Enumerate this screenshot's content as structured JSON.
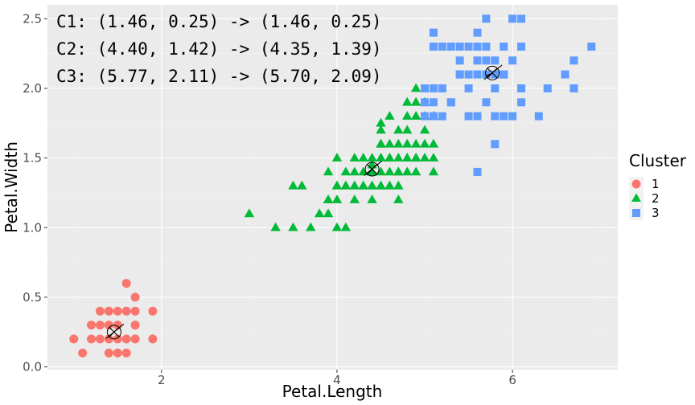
{
  "chart_data": {
    "type": "scatter",
    "title": "",
    "xlabel": "Petal.Length",
    "ylabel": "Petal.Width",
    "xlim": [
      0.7,
      7.2
    ],
    "ylim": [
      -0.02,
      2.6
    ],
    "x_ticks": [
      2,
      4,
      6
    ],
    "x_tick_labels": [
      "2",
      "4",
      "6"
    ],
    "y_ticks": [
      0.0,
      0.5,
      1.0,
      1.5,
      2.0,
      2.5
    ],
    "y_tick_labels": [
      "0.0",
      "0.5",
      "1.0",
      "1.5",
      "2.0",
      "2.5"
    ],
    "grid": true,
    "legend": {
      "title": "Cluster",
      "position": "right"
    },
    "series": [
      {
        "name": "1",
        "color": "#F8766D",
        "shape": "circle",
        "points": [
          [
            1.0,
            0.2
          ],
          [
            1.1,
            0.1
          ],
          [
            1.2,
            0.2
          ],
          [
            1.3,
            0.2
          ],
          [
            1.3,
            0.3
          ],
          [
            1.3,
            0.4
          ],
          [
            1.4,
            0.1
          ],
          [
            1.4,
            0.2
          ],
          [
            1.4,
            0.3
          ],
          [
            1.5,
            0.1
          ],
          [
            1.5,
            0.2
          ],
          [
            1.5,
            0.4
          ],
          [
            1.6,
            0.2
          ],
          [
            1.6,
            0.4
          ],
          [
            1.6,
            0.6
          ],
          [
            1.7,
            0.2
          ],
          [
            1.7,
            0.3
          ],
          [
            1.7,
            0.4
          ],
          [
            1.7,
            0.5
          ],
          [
            1.9,
            0.2
          ],
          [
            1.9,
            0.4
          ],
          [
            1.2,
            0.3
          ],
          [
            1.4,
            0.4
          ],
          [
            1.5,
            0.3
          ],
          [
            1.6,
            0.1
          ]
        ]
      },
      {
        "name": "2",
        "color": "#00BA38",
        "shape": "triangle",
        "points": [
          [
            3.0,
            1.1
          ],
          [
            3.3,
            1.0
          ],
          [
            3.5,
            1.0
          ],
          [
            3.5,
            1.3
          ],
          [
            3.6,
            1.3
          ],
          [
            3.7,
            1.0
          ],
          [
            3.8,
            1.1
          ],
          [
            3.9,
            1.1
          ],
          [
            3.9,
            1.2
          ],
          [
            3.9,
            1.4
          ],
          [
            4.0,
            1.0
          ],
          [
            4.0,
            1.2
          ],
          [
            4.0,
            1.3
          ],
          [
            4.1,
            1.0
          ],
          [
            4.1,
            1.3
          ],
          [
            4.2,
            1.2
          ],
          [
            4.2,
            1.3
          ],
          [
            4.2,
            1.5
          ],
          [
            4.3,
            1.3
          ],
          [
            4.4,
            1.2
          ],
          [
            4.4,
            1.3
          ],
          [
            4.4,
            1.4
          ],
          [
            4.5,
            1.3
          ],
          [
            4.5,
            1.5
          ],
          [
            4.5,
            1.6
          ],
          [
            4.6,
            1.3
          ],
          [
            4.6,
            1.4
          ],
          [
            4.6,
            1.5
          ],
          [
            4.7,
            1.2
          ],
          [
            4.7,
            1.4
          ],
          [
            4.7,
            1.5
          ],
          [
            4.7,
            1.6
          ],
          [
            4.8,
            1.4
          ],
          [
            4.8,
            1.8
          ],
          [
            4.9,
            1.5
          ],
          [
            4.9,
            1.8
          ],
          [
            4.9,
            2.0
          ],
          [
            5.0,
            1.5
          ],
          [
            5.0,
            1.7
          ],
          [
            5.1,
            1.5
          ],
          [
            5.1,
            1.6
          ],
          [
            4.8,
            1.5
          ],
          [
            4.4,
            1.4
          ],
          [
            4.5,
            1.4
          ],
          [
            4.6,
            1.6
          ],
          [
            4.8,
            1.5
          ],
          [
            5.0,
            1.8
          ],
          [
            4.9,
            1.5
          ],
          [
            4.5,
            1.5
          ],
          [
            4.0,
            1.3
          ],
          [
            4.2,
            1.3
          ],
          [
            4.1,
            1.3
          ],
          [
            4.3,
            1.4
          ],
          [
            4.7,
            1.3
          ],
          [
            4.9,
            1.9
          ],
          [
            4.8,
            1.6
          ],
          [
            4.5,
            1.7
          ],
          [
            5.0,
            1.9
          ],
          [
            4.9,
            1.4
          ],
          [
            4.6,
            1.5
          ],
          [
            5.1,
            1.4
          ],
          [
            4.3,
            1.5
          ],
          [
            4.4,
            1.45
          ],
          [
            4.5,
            1.75
          ],
          [
            4.7,
            1.7
          ],
          [
            4.8,
            1.9
          ],
          [
            5.1,
            1.8
          ],
          [
            4.6,
            1.3
          ],
          [
            4.2,
            1.4
          ],
          [
            4.0,
            1.5
          ],
          [
            4.4,
            1.5
          ],
          [
            4.6,
            1.8
          ],
          [
            4.5,
            1.6
          ],
          [
            4.7,
            1.4
          ],
          [
            4.9,
            1.6
          ],
          [
            5.0,
            1.6
          ],
          [
            4.8,
            1.7
          ],
          [
            4.1,
            1.4
          ],
          [
            3.9,
            1.2
          ],
          [
            4.3,
            1.3
          ],
          [
            4.4,
            1.3
          ],
          [
            4.5,
            1.3
          ]
        ]
      },
      {
        "name": "3",
        "color": "#619CFF",
        "shape": "square",
        "points": [
          [
            5.0,
            2.0
          ],
          [
            5.1,
            1.8
          ],
          [
            5.1,
            1.9
          ],
          [
            5.1,
            2.0
          ],
          [
            5.1,
            2.3
          ],
          [
            5.1,
            2.4
          ],
          [
            5.2,
            2.0
          ],
          [
            5.2,
            2.3
          ],
          [
            5.3,
            1.9
          ],
          [
            5.3,
            2.3
          ],
          [
            5.4,
            2.1
          ],
          [
            5.4,
            2.3
          ],
          [
            5.5,
            1.8
          ],
          [
            5.5,
            2.1
          ],
          [
            5.6,
            1.4
          ],
          [
            5.6,
            1.8
          ],
          [
            5.6,
            2.1
          ],
          [
            5.6,
            2.2
          ],
          [
            5.6,
            2.4
          ],
          [
            5.7,
            2.1
          ],
          [
            5.7,
            2.3
          ],
          [
            5.7,
            2.5
          ],
          [
            5.8,
            1.6
          ],
          [
            5.8,
            1.8
          ],
          [
            5.8,
            2.2
          ],
          [
            5.8,
            2.1
          ],
          [
            5.9,
            2.1
          ],
          [
            5.9,
            2.3
          ],
          [
            6.0,
            1.8
          ],
          [
            6.0,
            2.5
          ],
          [
            6.1,
            1.9
          ],
          [
            6.1,
            2.3
          ],
          [
            6.1,
            2.5
          ],
          [
            6.3,
            1.8
          ],
          [
            6.4,
            2.0
          ],
          [
            6.6,
            2.1
          ],
          [
            6.7,
            2.0
          ],
          [
            6.7,
            2.2
          ],
          [
            6.9,
            2.3
          ],
          [
            5.0,
            1.8
          ],
          [
            5.2,
            1.8
          ],
          [
            5.4,
            2.2
          ],
          [
            5.6,
            2.3
          ],
          [
            5.7,
            2.2
          ],
          [
            5.9,
            1.8
          ],
          [
            6.0,
            2.2
          ],
          [
            5.3,
            1.9
          ],
          [
            5.5,
            2.0
          ],
          [
            5.0,
            1.9
          ],
          [
            5.1,
            2.0
          ],
          [
            5.8,
            2.0
          ],
          [
            6.1,
            2.0
          ],
          [
            5.7,
            1.9
          ],
          [
            5.4,
            2.1
          ],
          [
            5.5,
            2.3
          ],
          [
            5.9,
            2.1
          ]
        ]
      }
    ],
    "centroids": [
      {
        "cluster": "1",
        "from": [
          1.46,
          0.25
        ],
        "to": [
          1.46,
          0.25
        ]
      },
      {
        "cluster": "2",
        "from": [
          4.4,
          1.42
        ],
        "to": [
          4.35,
          1.39
        ]
      },
      {
        "cluster": "3",
        "from": [
          5.77,
          2.11
        ],
        "to": [
          5.7,
          2.09
        ]
      }
    ],
    "annotations": [
      "C1: (1.46, 0.25) -> (1.46, 0.25)",
      "C2: (4.40, 1.42) -> (4.35, 1.39)",
      "C3: (5.77, 2.11) -> (5.70, 2.09)"
    ]
  }
}
